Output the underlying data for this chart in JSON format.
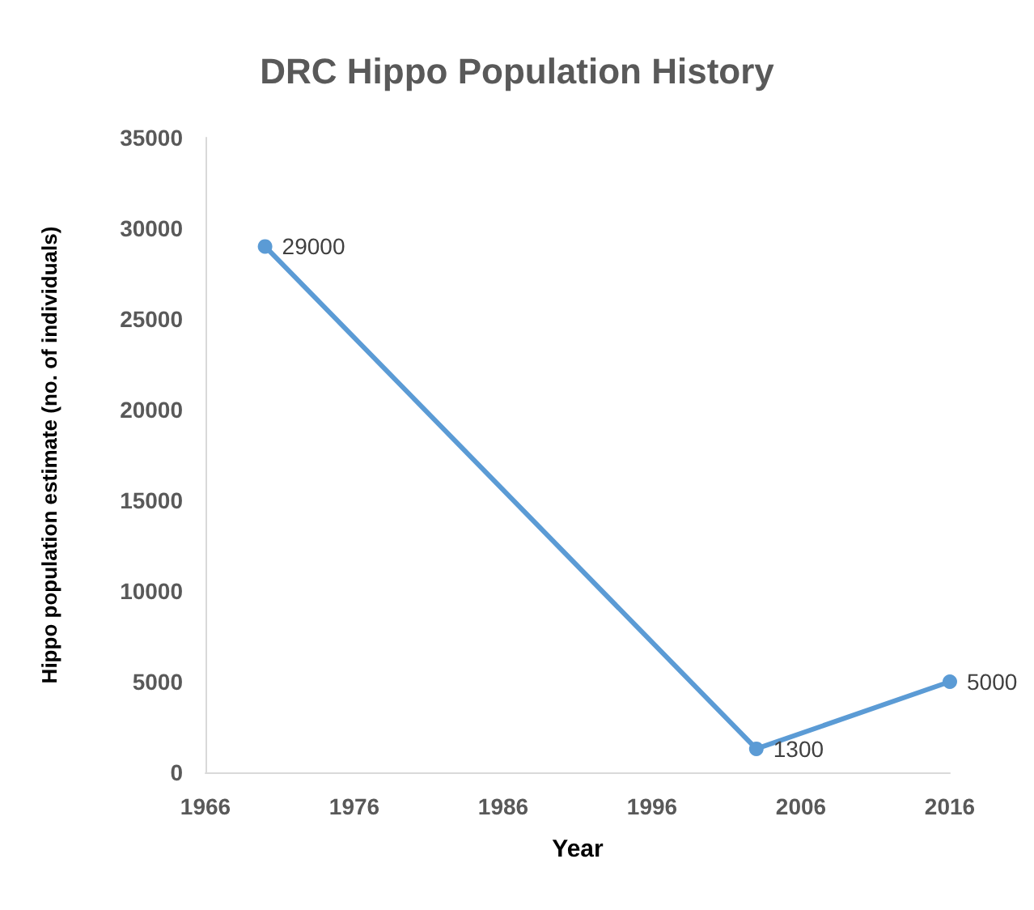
{
  "chart_data": {
    "type": "line",
    "title": "DRC Hippo Population History",
    "xlabel": "Year",
    "ylabel": "Hippo population estimate (no. of individuals)",
    "x": [
      1970,
      2003,
      2016
    ],
    "series": [
      {
        "color": "#5b9bd5",
        "values": [
          29000,
          1300,
          5000
        ]
      }
    ],
    "xlim": [
      1966,
      2016
    ],
    "xticks": [
      1966,
      1976,
      1986,
      1996,
      2006,
      2016
    ],
    "ylim": [
      0,
      35000
    ],
    "yticks": [
      0,
      5000,
      10000,
      15000,
      20000,
      25000,
      30000,
      35000
    ],
    "grid": false,
    "legend": false,
    "marker": "circle",
    "line_style": "solid",
    "data_labels": true
  }
}
